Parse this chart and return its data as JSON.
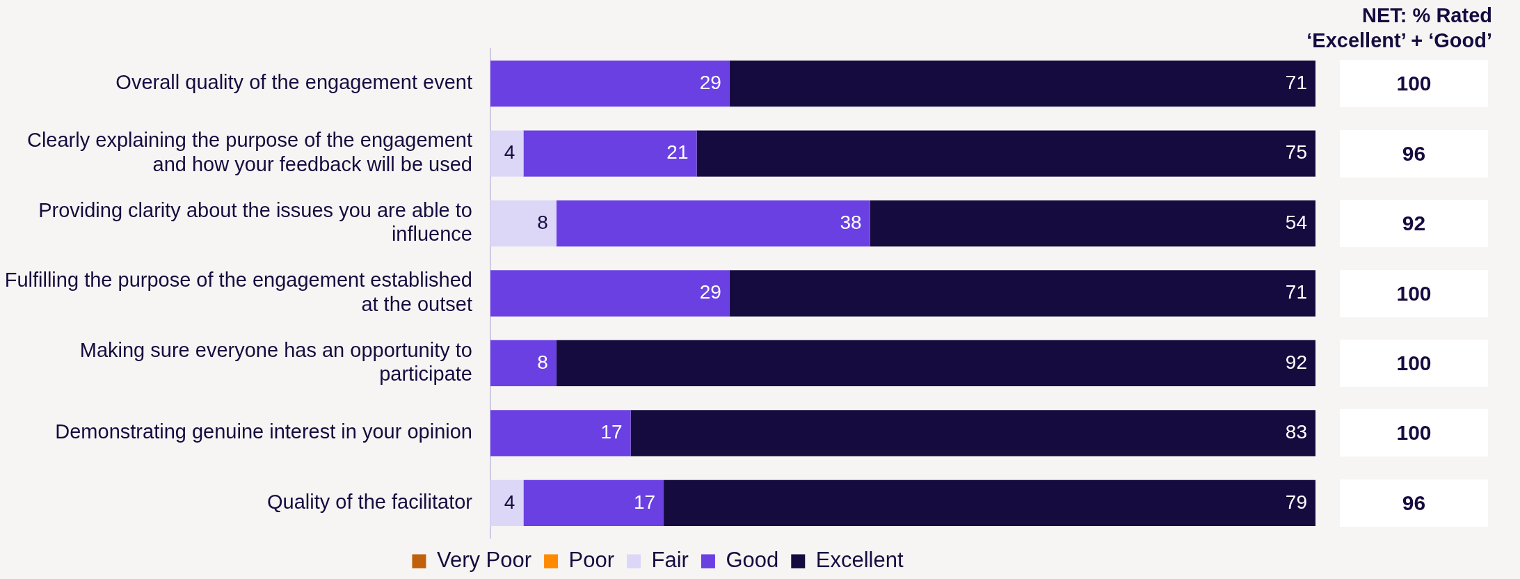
{
  "chart_data": [
    {
      "type": "bar",
      "orientation": "horizontal",
      "stacked": true,
      "categories": [
        "Overall quality of the engagement event",
        "Clearly explaining the purpose of the engagement and how your feedback will be used",
        "Providing clarity about the issues you are able to influence",
        "Fulfilling the purpose of the engagement established at the outset",
        "Making sure everyone has an opportunity to participate",
        "Demonstrating genuine interest in your opinion",
        "Quality of the facilitator"
      ],
      "series": [
        {
          "name": "Very Poor",
          "color": "#c0600c",
          "values": [
            null,
            null,
            null,
            null,
            null,
            null,
            null
          ]
        },
        {
          "name": "Poor",
          "color": "#ff8a00",
          "values": [
            null,
            null,
            null,
            null,
            null,
            null,
            null
          ]
        },
        {
          "name": "Fair",
          "color": "#ddd7f7",
          "values": [
            null,
            4,
            8,
            null,
            null,
            null,
            4
          ]
        },
        {
          "name": "Good",
          "color": "#6a40e2",
          "values": [
            29,
            21,
            38,
            29,
            8,
            17,
            17
          ]
        },
        {
          "name": "Excellent",
          "color": "#160b3f",
          "values": [
            71,
            75,
            54,
            71,
            92,
            83,
            79
          ]
        }
      ],
      "xlim": [
        0,
        100
      ],
      "tick_labels": "y",
      "legend": "bottom",
      "data_labels": true
    },
    {
      "type": "other",
      "title": "NET: % Rated ‘Excellent’ + ‘Good’",
      "annotations": [
        "100",
        "96",
        "92",
        "100",
        "100",
        "100",
        "96"
      ]
    }
  ]
}
